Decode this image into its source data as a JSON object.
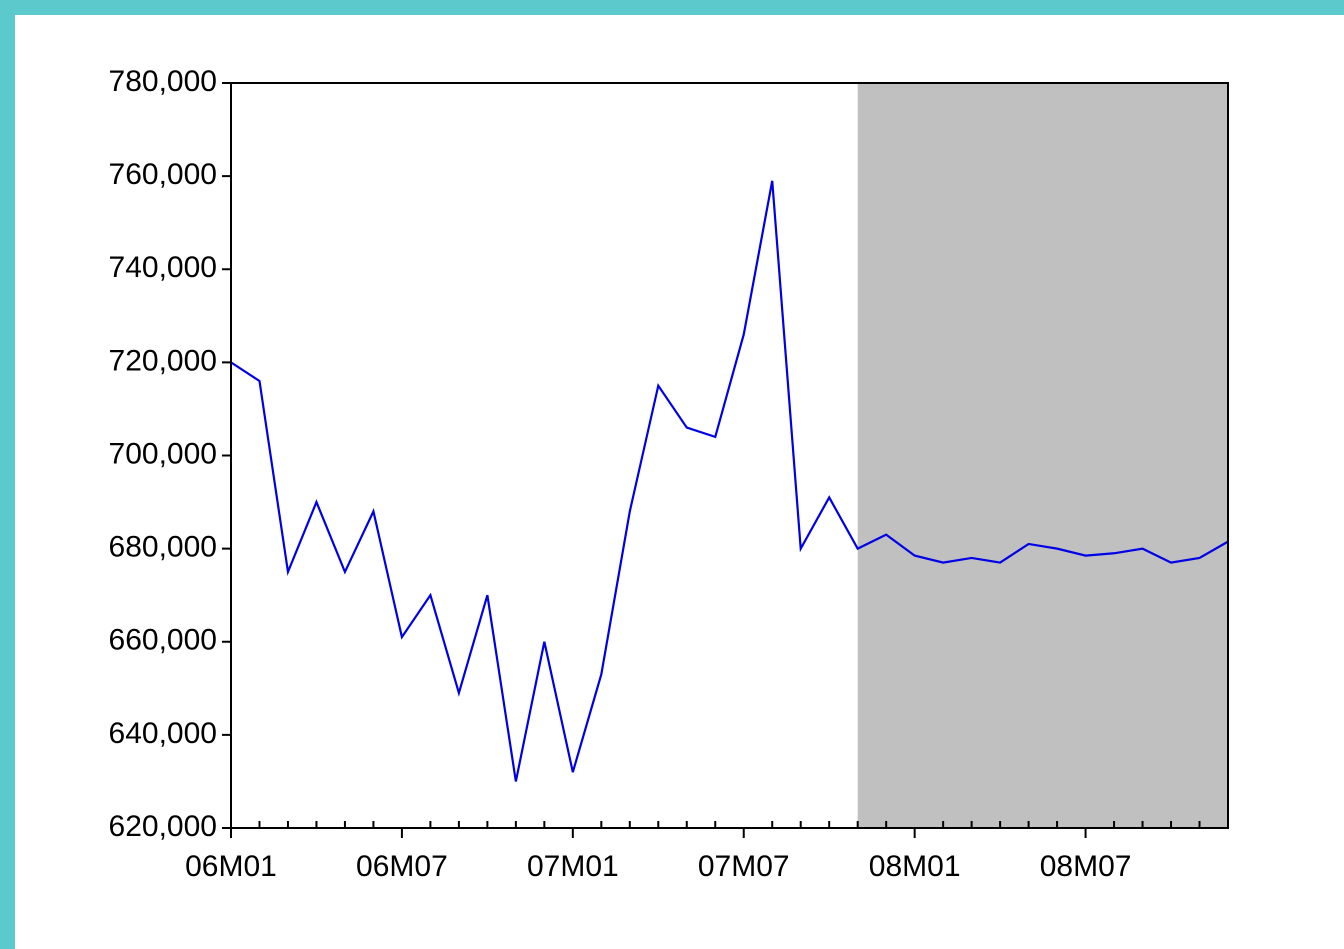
{
  "chart_data": {
    "type": "line",
    "categories": [
      "06M01",
      null,
      null,
      null,
      null,
      null,
      "06M07",
      null,
      null,
      null,
      null,
      null,
      "07M01",
      null,
      null,
      null,
      null,
      null,
      "07M07",
      null,
      null,
      null,
      null,
      null,
      "08M01",
      null,
      null,
      null,
      null,
      null,
      "08M07",
      null,
      null,
      null,
      null,
      null
    ],
    "series": [
      {
        "name": null,
        "color": "#0000e6",
        "values": [
          720000,
          716000,
          675000,
          690000,
          675000,
          688000,
          661000,
          670000,
          649000,
          670000,
          630000,
          660000,
          632000,
          653000,
          688000,
          715000,
          706000,
          704000,
          726000,
          759000,
          680000,
          691000,
          680000,
          683000,
          678500,
          677000,
          678000,
          677000,
          681000,
          680000,
          678500,
          679000,
          680000,
          677000,
          678000,
          681500
        ]
      }
    ],
    "ylim": [
      620000,
      780000
    ],
    "yticks": [
      {
        "value": 620000,
        "label": "620,000"
      },
      {
        "value": 640000,
        "label": "640,000"
      },
      {
        "value": 660000,
        "label": "660,000"
      },
      {
        "value": 680000,
        "label": "680,000"
      },
      {
        "value": 700000,
        "label": "700,000"
      },
      {
        "value": 720000,
        "label": "720,000"
      },
      {
        "value": 740000,
        "label": "740,000"
      },
      {
        "value": 760000,
        "label": "760,000"
      },
      {
        "value": 780000,
        "label": "780,000"
      }
    ],
    "shaded_range": {
      "from": 22,
      "to": 35,
      "color": "#c0c0c0"
    },
    "grid": false
  }
}
